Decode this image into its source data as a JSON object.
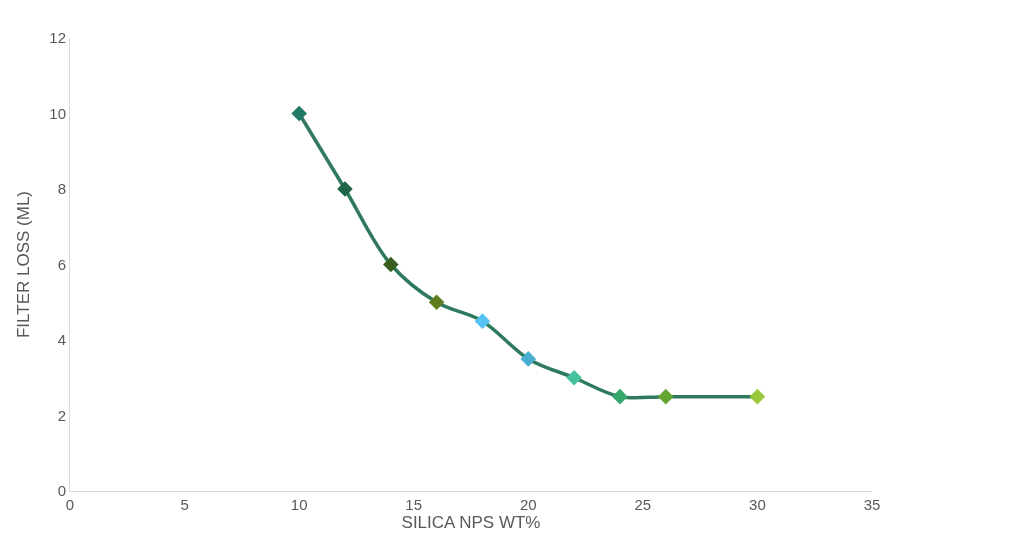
{
  "chart_data": {
    "type": "line",
    "xlabel": "SILICA NPS WT%",
    "ylabel": "FILTER LOSS (ML)",
    "x": [
      10,
      12,
      14,
      16,
      18,
      20,
      22,
      24,
      26,
      30
    ],
    "values": [
      10,
      8,
      6,
      5,
      4.5,
      3.5,
      3,
      2.5,
      2.5,
      2.5
    ],
    "color": "#2f7a5c",
    "colors": [
      "#217867",
      "#1e6647",
      "#3a5e1f",
      "#5e7d1e",
      "#55c4f5",
      "#4aaed0",
      "#45c1a0",
      "#37a86c",
      "#64a532",
      "#99c93a"
    ],
    "xlim": [
      0,
      35
    ],
    "xticks": [
      0,
      5,
      10,
      15,
      20,
      25,
      30,
      35
    ],
    "ylim": [
      0,
      12
    ],
    "yticks": [
      0,
      2,
      4,
      6,
      8,
      10,
      12
    ],
    "marker": "diamond",
    "grid": false
  }
}
